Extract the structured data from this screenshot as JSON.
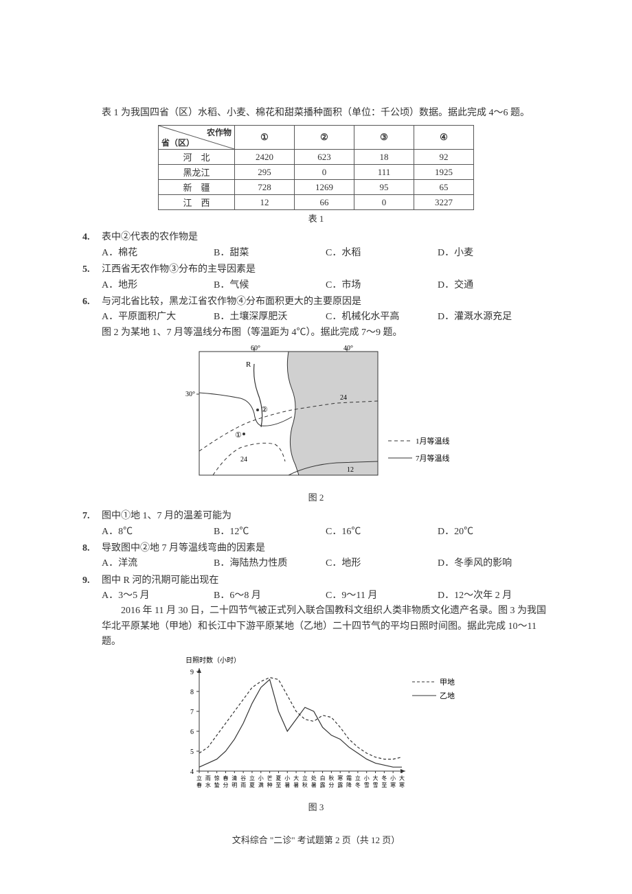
{
  "intro1": "表 1 为我国四省（区）水稻、小麦、棉花和甜菜播种面积（单位：千公顷）数据。据此完成 4～6 题。",
  "table": {
    "diag_top": "农作物",
    "diag_bot": "省（区）",
    "cols": [
      "①",
      "②",
      "③",
      "④"
    ],
    "rows": [
      {
        "label": "河　北",
        "v": [
          "2420",
          "623",
          "18",
          "92"
        ]
      },
      {
        "label": "黑龙江",
        "v": [
          "295",
          "0",
          "111",
          "1925"
        ]
      },
      {
        "label": "新　疆",
        "v": [
          "728",
          "1269",
          "95",
          "65"
        ]
      },
      {
        "label": "江　西",
        "v": [
          "12",
          "66",
          "0",
          "3227"
        ]
      }
    ],
    "caption": "表 1"
  },
  "q4": {
    "num": "4.",
    "stem": "表中②代表的农作物是",
    "opts": [
      "A．棉花",
      "B．甜菜",
      "C．水稻",
      "D．小麦"
    ]
  },
  "q5": {
    "num": "5.",
    "stem": "江西省无农作物③分布的主导因素是",
    "opts": [
      "A．地形",
      "B．气候",
      "C．市场",
      "D．交通"
    ]
  },
  "q6": {
    "num": "6.",
    "stem": "与河北省比较，黑龙江省农作物④分布面积更大的主要原因是",
    "opts": [
      "A．平原面积广大",
      "B．土壤深厚肥沃",
      "C．机械化水平高",
      "D．灌溉水源充足"
    ]
  },
  "intro2": "图 2 为某地 1、7 月等温线分布图（等温距为 4℃）。据此完成 7～9 题。",
  "fig2": {
    "caption": "图 2",
    "legend": [
      "1月等温线",
      "7月等温线"
    ],
    "labels": {
      "60": "60°",
      "40": "40°",
      "30": "30°",
      "24": "24",
      "12": "12",
      "R": "R",
      "p1": "①",
      "p2": "②"
    },
    "colors": {
      "land": "#d0d0d0",
      "line": "#333",
      "dash": "#333",
      "frame": "#333"
    }
  },
  "q7": {
    "num": "7.",
    "stem": "图中①地 1、7 月的温差可能为",
    "opts": [
      "A．8℃",
      "B．12℃",
      "C．16℃",
      "D．20℃"
    ]
  },
  "q8": {
    "num": "8.",
    "stem": "导致图中②地 7 月等温线弯曲的因素是",
    "opts": [
      "A．洋流",
      "B．海陆热力性质",
      "C．地形",
      "D．冬季风的影响"
    ]
  },
  "q9": {
    "num": "9.",
    "stem": "图中 R 河的汛期可能出现在",
    "opts": [
      "A．3～5 月",
      "B．6～8 月",
      "C．9～11 月",
      "D．12～次年 2 月"
    ]
  },
  "intro3": "2016 年 11 月 30 日，二十四节气被正式列入联合国教科文组织人类非物质文化遗产名录。图 3 为我国华北平原某地（甲地）和长江中下游平原某地（乙地）二十四节气的平均日照时间图。据此完成 10～11 题。",
  "fig3": {
    "caption": "图 3",
    "ylabel": "日照时数（小时）",
    "legend": [
      "甲地",
      "乙地"
    ],
    "yticks": [
      "4",
      "5",
      "6",
      "7",
      "8",
      "9"
    ],
    "xticks": [
      "立春",
      "雨水",
      "惊蛰",
      "春分",
      "清明",
      "谷雨",
      "立夏",
      "小满",
      "芒种",
      "夏至",
      "小暑",
      "大暑",
      "立秋",
      "处暑",
      "白露",
      "秋分",
      "寒露",
      "霜降",
      "立冬",
      "小雪",
      "大雪",
      "冬至",
      "小寒",
      "大寒"
    ],
    "series": {
      "jia": [
        4.9,
        5.2,
        5.8,
        6.4,
        7.0,
        7.6,
        8.2,
        8.5,
        8.7,
        8.6,
        7.8,
        7.0,
        6.6,
        6.5,
        6.8,
        6.7,
        6.2,
        5.6,
        5.2,
        4.9,
        4.7,
        4.6,
        4.6,
        4.7
      ],
      "yi": [
        4.2,
        4.4,
        4.6,
        5.0,
        5.6,
        6.4,
        7.4,
        8.2,
        8.6,
        7.0,
        6.0,
        6.6,
        7.2,
        7.0,
        6.2,
        5.8,
        5.6,
        5.2,
        4.9,
        4.6,
        4.4,
        4.3,
        4.2,
        4.2
      ]
    },
    "colors": {
      "axis": "#333",
      "jia": "#333",
      "yi": "#333"
    }
  },
  "footer": "文科综合 \"二诊\" 考试题第 2 页（共 12 页）"
}
